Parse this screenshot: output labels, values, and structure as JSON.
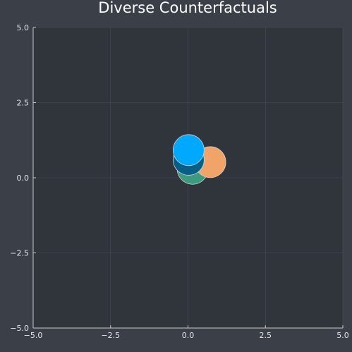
{
  "chart_data": {
    "type": "scatter",
    "title": "Diverse Counterfactuals",
    "xlabel": "",
    "ylabel": "",
    "xlim": [
      -5,
      5
    ],
    "ylim": [
      -5,
      5
    ],
    "xticks": [
      "−5.0",
      "−2.5",
      "0.0",
      "2.5",
      "5.0"
    ],
    "yticks": [
      "−5.0",
      "−2.5",
      "0.0",
      "2.5",
      "5.0"
    ],
    "xtick_values": [
      -5,
      -2.5,
      0,
      2.5,
      5
    ],
    "ytick_values": [
      -5,
      -2.5,
      0,
      2.5,
      5
    ],
    "grid": true,
    "legend": "none",
    "series": [
      {
        "x": [
          0.15
        ],
        "y": [
          0.3
        ],
        "color": "#3e9a7e"
      },
      {
        "x": [
          0.72
        ],
        "y": [
          0.52
        ],
        "color": "#f0a468"
      },
      {
        "x": [
          0.02
        ],
        "y": [
          0.6
        ],
        "color": "#075f85"
      },
      {
        "x": [
          0.02
        ],
        "y": [
          0.92
        ],
        "color": "#00a9fe"
      }
    ]
  }
}
